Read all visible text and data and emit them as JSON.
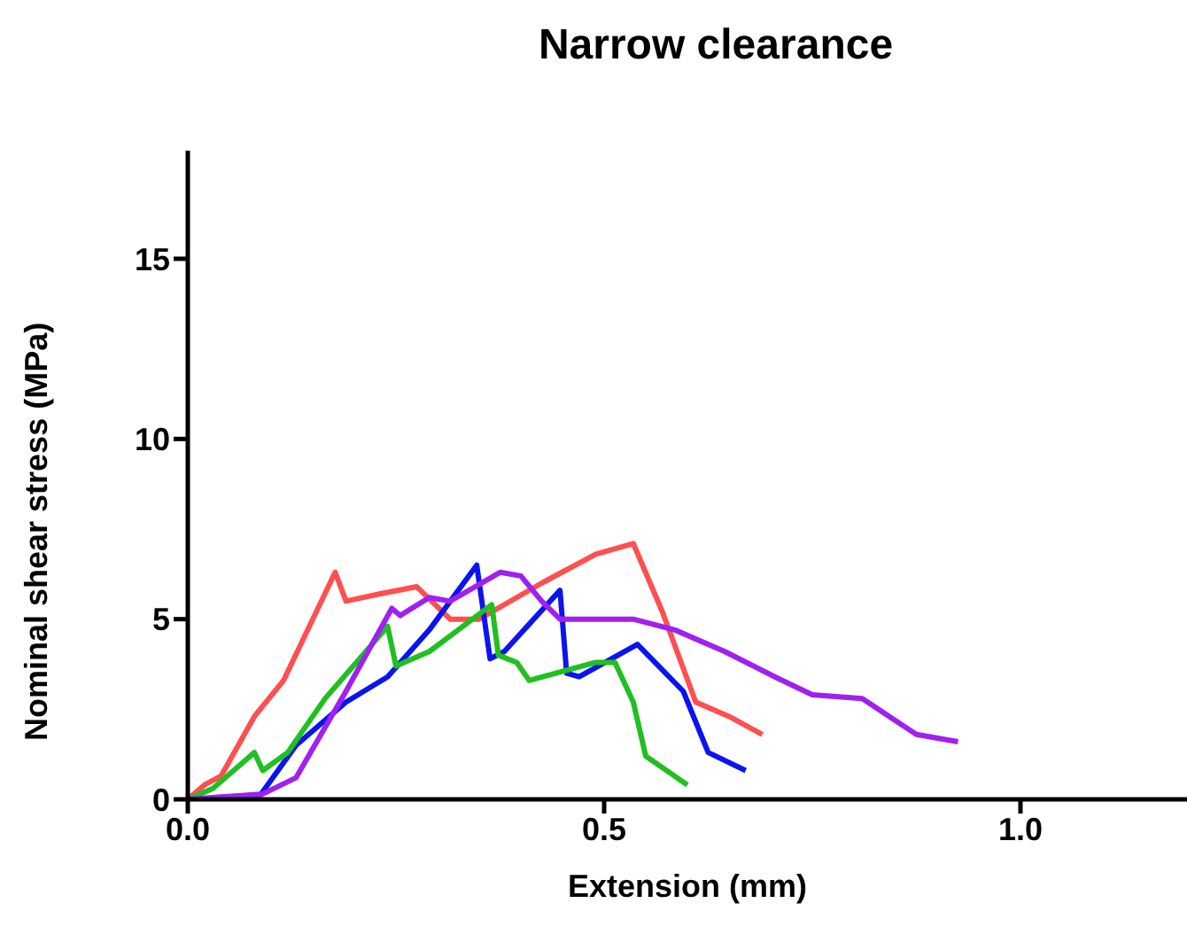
{
  "chart_data": {
    "type": "line",
    "title": "Narrow clearance",
    "xlabel": "Extension (mm)",
    "ylabel": "Nominal shear  stress (MPa)",
    "xlim": [
      0,
      1.2
    ],
    "xticks": [
      {
        "value": 0,
        "label": "0.0"
      },
      {
        "value": 0.5,
        "label": "0.5"
      },
      {
        "value": 1,
        "label": "1.0"
      }
    ],
    "ylim": [
      0,
      18
    ],
    "yticks": [
      0,
      5,
      10,
      15
    ],
    "grid": false,
    "legend": false,
    "marker": "none",
    "series": [
      {
        "color": "#ff4f4f",
        "x": [
          0,
          0.02,
          0.04,
          0.08,
          0.115,
          0.177,
          0.19,
          0.23,
          0.275,
          0.315,
          0.35,
          0.425,
          0.49,
          0.535,
          0.57,
          0.61,
          0.65,
          0.69
        ],
        "values": [
          0,
          0.4,
          0.65,
          2.3,
          3.3,
          6.3,
          5.5,
          5.7,
          5.9,
          5.0,
          5.0,
          6.0,
          6.8,
          7.1,
          5.2,
          2.7,
          2.3,
          1.8
        ]
      },
      {
        "color": "#0a14f0",
        "x": [
          0,
          0.085,
          0.13,
          0.19,
          0.24,
          0.29,
          0.347,
          0.363,
          0.38,
          0.447,
          0.455,
          0.47,
          0.54,
          0.595,
          0.625,
          0.67
        ],
        "values": [
          0,
          0.05,
          1.5,
          2.7,
          3.4,
          4.7,
          6.5,
          3.9,
          4.1,
          5.8,
          3.5,
          3.4,
          4.3,
          3.0,
          1.3,
          0.8
        ]
      },
      {
        "color": "#1fc01f",
        "x": [
          0,
          0.03,
          0.08,
          0.09,
          0.12,
          0.165,
          0.24,
          0.25,
          0.29,
          0.365,
          0.373,
          0.395,
          0.41,
          0.49,
          0.513,
          0.535,
          0.55,
          0.6
        ],
        "values": [
          0,
          0.3,
          1.3,
          0.8,
          1.3,
          2.8,
          4.8,
          3.7,
          4.1,
          5.4,
          4.0,
          3.8,
          3.3,
          3.8,
          3.8,
          2.7,
          1.2,
          0.4
        ]
      },
      {
        "color": "#a020f0",
        "x": [
          0,
          0.09,
          0.13,
          0.19,
          0.245,
          0.255,
          0.29,
          0.315,
          0.375,
          0.4,
          0.425,
          0.447,
          0.535,
          0.585,
          0.645,
          0.705,
          0.75,
          0.81,
          0.875,
          0.925
        ],
        "values": [
          0,
          0.15,
          0.6,
          3.0,
          5.3,
          5.1,
          5.6,
          5.5,
          6.3,
          6.2,
          5.5,
          5.0,
          5.0,
          4.7,
          4.1,
          3.4,
          2.9,
          2.8,
          1.8,
          1.6
        ]
      }
    ]
  }
}
